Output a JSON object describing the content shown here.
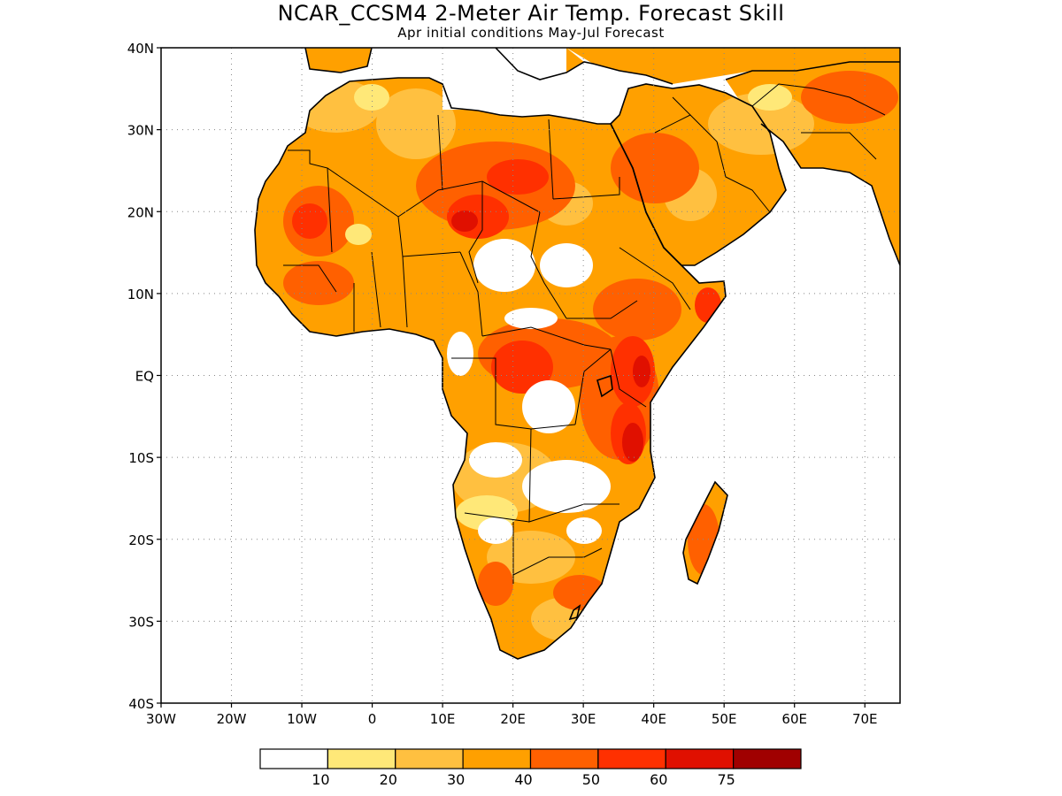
{
  "title": "NCAR_CCSM4 2-Meter Air Temp. Forecast Skill",
  "subtitle": "Apr initial conditions  May-Jul Forecast",
  "map": {
    "lon_range": [
      -30,
      75
    ],
    "lat_range": [
      -40,
      40
    ],
    "lat_ticks": [
      {
        "value": 40,
        "label": "40N"
      },
      {
        "value": 30,
        "label": "30N"
      },
      {
        "value": 20,
        "label": "20N"
      },
      {
        "value": 10,
        "label": "10N"
      },
      {
        "value": 0,
        "label": "EQ"
      },
      {
        "value": -10,
        "label": "10S"
      },
      {
        "value": -20,
        "label": "20S"
      },
      {
        "value": -30,
        "label": "30S"
      },
      {
        "value": -40,
        "label": "40S"
      }
    ],
    "lon_ticks": [
      {
        "value": -30,
        "label": "30W"
      },
      {
        "value": -20,
        "label": "20W"
      },
      {
        "value": -10,
        "label": "10W"
      },
      {
        "value": 0,
        "label": "0"
      },
      {
        "value": 10,
        "label": "10E"
      },
      {
        "value": 20,
        "label": "20E"
      },
      {
        "value": 30,
        "label": "30E"
      },
      {
        "value": 40,
        "label": "40E"
      },
      {
        "value": 50,
        "label": "50E"
      },
      {
        "value": 60,
        "label": "60E"
      },
      {
        "value": 70,
        "label": "70E"
      }
    ],
    "grid": true
  },
  "colorbar": {
    "colors": [
      "#ffffff",
      "#ffe878",
      "#ffc040",
      "#ffa000",
      "#ff6000",
      "#ff3000",
      "#e01000",
      "#a00000"
    ],
    "labels": [
      "10",
      "20",
      "30",
      "40",
      "50",
      "60",
      "75"
    ]
  }
}
